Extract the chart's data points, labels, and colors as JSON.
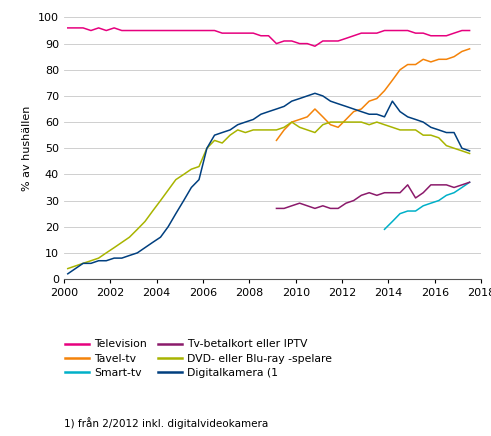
{
  "title": "",
  "ylabel": "% av hushällen",
  "footnote": "1) från 2/2012 inkl. digitalvideokamera",
  "ylim": [
    0,
    100
  ],
  "xlim": [
    2000,
    2018
  ],
  "xticks": [
    2000,
    2002,
    2004,
    2006,
    2008,
    2010,
    2012,
    2014,
    2016,
    2018
  ],
  "yticks": [
    0,
    10,
    20,
    30,
    40,
    50,
    60,
    70,
    80,
    90,
    100
  ],
  "series": {
    "Television": {
      "color": "#e6007e",
      "data_x": [
        2000.17,
        2000.5,
        2000.83,
        2001.17,
        2001.5,
        2001.83,
        2002.17,
        2002.5,
        2002.83,
        2003.17,
        2003.5,
        2003.83,
        2004.17,
        2004.5,
        2004.83,
        2005.17,
        2005.5,
        2005.83,
        2006.17,
        2006.5,
        2006.83,
        2007.17,
        2007.5,
        2007.83,
        2008.17,
        2008.5,
        2008.83,
        2009.17,
        2009.5,
        2009.83,
        2010.17,
        2010.5,
        2010.83,
        2011.17,
        2011.5,
        2011.83,
        2012.17,
        2012.5,
        2012.83,
        2013.17,
        2013.5,
        2013.83,
        2014.17,
        2014.5,
        2014.83,
        2015.17,
        2015.5,
        2015.83,
        2016.17,
        2016.5,
        2016.83,
        2017.17,
        2017.5
      ],
      "data_y": [
        96,
        96,
        96,
        95,
        96,
        95,
        96,
        95,
        95,
        95,
        95,
        95,
        95,
        95,
        95,
        95,
        95,
        95,
        95,
        95,
        94,
        94,
        94,
        94,
        94,
        93,
        93,
        90,
        91,
        91,
        90,
        90,
        89,
        91,
        91,
        91,
        92,
        93,
        94,
        94,
        94,
        95,
        95,
        95,
        95,
        94,
        94,
        93,
        93,
        93,
        94,
        95,
        95
      ]
    },
    "Tavel-tv": {
      "color": "#f4830a",
      "data_x": [
        2009.17,
        2009.5,
        2009.83,
        2010.17,
        2010.5,
        2010.83,
        2011.17,
        2011.5,
        2011.83,
        2012.17,
        2012.5,
        2012.83,
        2013.17,
        2013.5,
        2013.83,
        2014.17,
        2014.5,
        2014.83,
        2015.17,
        2015.5,
        2015.83,
        2016.17,
        2016.5,
        2016.83,
        2017.17,
        2017.5
      ],
      "data_y": [
        53,
        57,
        60,
        61,
        62,
        65,
        62,
        59,
        58,
        61,
        64,
        65,
        68,
        69,
        72,
        76,
        80,
        82,
        82,
        84,
        83,
        84,
        84,
        85,
        87,
        88
      ]
    },
    "Smart-tv": {
      "color": "#00b0c8",
      "data_x": [
        2013.83,
        2014.17,
        2014.5,
        2014.83,
        2015.17,
        2015.5,
        2015.83,
        2016.17,
        2016.5,
        2016.83,
        2017.17,
        2017.5
      ],
      "data_y": [
        19,
        22,
        25,
        26,
        26,
        28,
        29,
        30,
        32,
        33,
        35,
        37
      ]
    },
    "Tv-betalkort eller IPTV": {
      "color": "#8b1a6b",
      "data_x": [
        2009.17,
        2009.5,
        2009.83,
        2010.17,
        2010.5,
        2010.83,
        2011.17,
        2011.5,
        2011.83,
        2012.17,
        2012.5,
        2012.83,
        2013.17,
        2013.5,
        2013.83,
        2014.17,
        2014.5,
        2014.83,
        2015.17,
        2015.5,
        2015.83,
        2016.17,
        2016.5,
        2016.83,
        2017.17,
        2017.5
      ],
      "data_y": [
        27,
        27,
        28,
        29,
        28,
        27,
        28,
        27,
        27,
        29,
        30,
        32,
        33,
        32,
        33,
        33,
        33,
        36,
        31,
        33,
        36,
        36,
        36,
        35,
        36,
        37
      ]
    },
    "DVD- eller Blu-ray -spelare": {
      "color": "#a8b400",
      "data_x": [
        2000.17,
        2000.5,
        2000.83,
        2001.17,
        2001.5,
        2001.83,
        2002.17,
        2002.5,
        2002.83,
        2003.17,
        2003.5,
        2003.83,
        2004.17,
        2004.5,
        2004.83,
        2005.17,
        2005.5,
        2005.83,
        2006.17,
        2006.5,
        2006.83,
        2007.17,
        2007.5,
        2007.83,
        2008.17,
        2008.5,
        2008.83,
        2009.17,
        2009.5,
        2009.83,
        2010.17,
        2010.5,
        2010.83,
        2011.17,
        2011.5,
        2011.83,
        2012.17,
        2012.5,
        2012.83,
        2013.17,
        2013.5,
        2013.83,
        2014.17,
        2014.5,
        2014.83,
        2015.17,
        2015.5,
        2015.83,
        2016.17,
        2016.5,
        2016.83,
        2017.17,
        2017.5
      ],
      "data_y": [
        4,
        5,
        6,
        7,
        8,
        10,
        12,
        14,
        16,
        19,
        22,
        26,
        30,
        34,
        38,
        40,
        42,
        43,
        50,
        53,
        52,
        55,
        57,
        56,
        57,
        57,
        57,
        57,
        58,
        60,
        58,
        57,
        56,
        59,
        60,
        60,
        60,
        60,
        60,
        59,
        60,
        59,
        58,
        57,
        57,
        57,
        55,
        55,
        54,
        51,
        50,
        49,
        48
      ]
    },
    "Digitalkamera (1": {
      "color": "#003f7f",
      "data_x": [
        2000.17,
        2000.5,
        2000.83,
        2001.17,
        2001.5,
        2001.83,
        2002.17,
        2002.5,
        2002.83,
        2003.17,
        2003.5,
        2003.83,
        2004.17,
        2004.5,
        2004.83,
        2005.17,
        2005.5,
        2005.83,
        2006.17,
        2006.5,
        2006.83,
        2007.17,
        2007.5,
        2007.83,
        2008.17,
        2008.5,
        2008.83,
        2009.17,
        2009.5,
        2009.83,
        2010.17,
        2010.5,
        2010.83,
        2011.17,
        2011.5,
        2011.83,
        2012.17,
        2012.5,
        2012.83,
        2013.17,
        2013.5,
        2013.83,
        2014.17,
        2014.5,
        2014.83,
        2015.17,
        2015.5,
        2015.83,
        2016.17,
        2016.5,
        2016.83,
        2017.17,
        2017.5
      ],
      "data_y": [
        2,
        4,
        6,
        6,
        7,
        7,
        8,
        8,
        9,
        10,
        12,
        14,
        16,
        20,
        25,
        30,
        35,
        38,
        50,
        55,
        56,
        57,
        59,
        60,
        61,
        63,
        64,
        65,
        66,
        68,
        69,
        70,
        71,
        70,
        68,
        67,
        66,
        65,
        64,
        63,
        63,
        62,
        68,
        64,
        62,
        61,
        60,
        58,
        57,
        56,
        56,
        50,
        49
      ]
    }
  },
  "legend_order": [
    "Television",
    "Tavel-tv",
    "Smart-tv",
    "Tv-betalkort eller IPTV",
    "DVD- eller Blu-ray -spelare",
    "Digitalkamera (1"
  ],
  "background_color": "#ffffff",
  "grid_color": "#c8c8c8"
}
